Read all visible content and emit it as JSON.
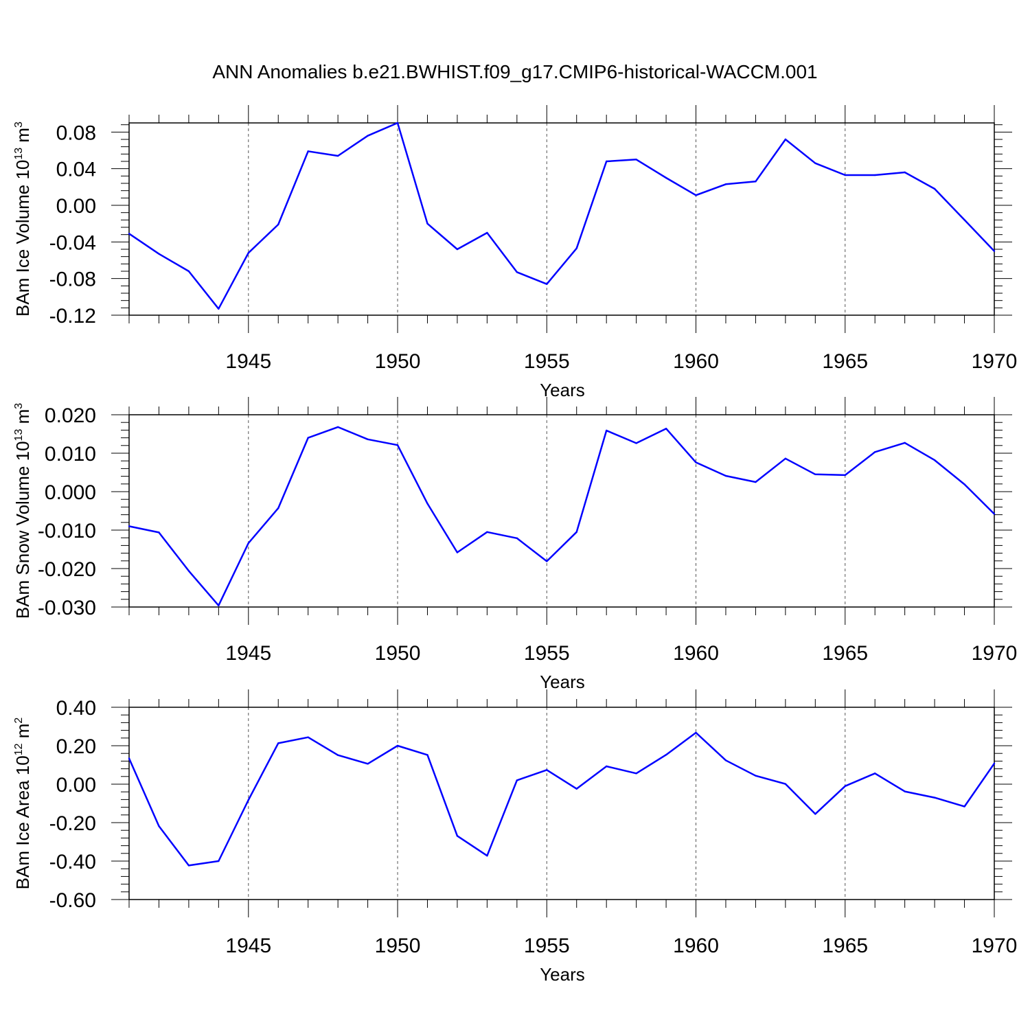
{
  "title": "ANN Anomalies b.e21.BWHIST.f09_g17.CMIP6-historical-WACCM.001",
  "line_color": "#0000ff",
  "chart_data": [
    {
      "type": "line",
      "ylabel_main": "BAm Ice Volume 10",
      "ylabel_exp": "13",
      "ylabel_unit": " m",
      "ylabel_unit_exp": "3",
      "xlabel": "Years",
      "xlim": [
        1941,
        1970
      ],
      "ylim": [
        -0.12,
        0.09
      ],
      "yticks": [
        -0.12,
        -0.08,
        -0.04,
        0.0,
        0.04,
        0.08
      ],
      "ytick_labels": [
        "-0.12",
        "-0.08",
        "-0.04",
        "0.00",
        "0.04",
        "0.08"
      ],
      "xticks": [
        1945,
        1950,
        1955,
        1960,
        1965,
        1970
      ],
      "xtick_labels": [
        "1945",
        "1950",
        "1955",
        "1960",
        "1965",
        "1970"
      ],
      "x": [
        1941,
        1942,
        1943,
        1944,
        1945,
        1946,
        1947,
        1948,
        1949,
        1950,
        1951,
        1952,
        1953,
        1954,
        1955,
        1956,
        1957,
        1958,
        1959,
        1960,
        1961,
        1962,
        1963,
        1964,
        1965,
        1966,
        1967,
        1968,
        1969,
        1970
      ],
      "values": [
        -0.031,
        -0.053,
        -0.072,
        -0.113,
        -0.052,
        -0.021,
        0.059,
        0.054,
        0.076,
        0.09,
        -0.02,
        -0.048,
        -0.03,
        -0.073,
        -0.086,
        -0.047,
        0.048,
        0.05,
        0.03,
        0.011,
        0.023,
        0.026,
        0.072,
        0.046,
        0.033,
        0.033,
        0.036,
        0.018,
        -0.016,
        -0.05
      ]
    },
    {
      "type": "line",
      "ylabel_main": "BAm Snow Volume 10",
      "ylabel_exp": "13",
      "ylabel_unit": " m",
      "ylabel_unit_exp": "3",
      "xlabel": "Years",
      "xlim": [
        1941,
        1970
      ],
      "ylim": [
        -0.03,
        0.02
      ],
      "yticks": [
        -0.03,
        -0.02,
        -0.01,
        0.0,
        0.01,
        0.02
      ],
      "ytick_labels": [
        "-0.030",
        "-0.020",
        "-0.010",
        "0.000",
        "0.010",
        "0.020"
      ],
      "xticks": [
        1945,
        1950,
        1955,
        1960,
        1965,
        1970
      ],
      "xtick_labels": [
        "1945",
        "1950",
        "1955",
        "1960",
        "1965",
        "1970"
      ],
      "x": [
        1941,
        1942,
        1943,
        1944,
        1945,
        1946,
        1947,
        1948,
        1949,
        1950,
        1951,
        1952,
        1953,
        1954,
        1955,
        1956,
        1957,
        1958,
        1959,
        1960,
        1961,
        1962,
        1963,
        1964,
        1965,
        1966,
        1967,
        1968,
        1969,
        1970
      ],
      "values": [
        -0.009,
        -0.0106,
        -0.0206,
        -0.0296,
        -0.0134,
        -0.0043,
        0.014,
        0.0168,
        0.0136,
        0.0121,
        -0.0031,
        -0.0158,
        -0.0105,
        -0.0121,
        -0.0181,
        -0.0105,
        0.0159,
        0.0126,
        0.0164,
        0.0076,
        0.0041,
        0.0025,
        0.0086,
        0.0045,
        0.0043,
        0.0103,
        0.0127,
        0.0082,
        0.0019,
        -0.0058
      ]
    },
    {
      "type": "line",
      "ylabel_main": "BAm Ice Area 10",
      "ylabel_exp": "12",
      "ylabel_unit": " m",
      "ylabel_unit_exp": "2",
      "xlabel": "Years",
      "xlim": [
        1941,
        1970
      ],
      "ylim": [
        -0.6,
        0.4
      ],
      "yticks": [
        -0.6,
        -0.4,
        -0.2,
        0.0,
        0.2,
        0.4
      ],
      "ytick_labels": [
        "-0.60",
        "-0.40",
        "-0.20",
        "0.00",
        "0.20",
        "0.40"
      ],
      "xticks": [
        1945,
        1950,
        1955,
        1960,
        1965,
        1970
      ],
      "xtick_labels": [
        "1945",
        "1950",
        "1955",
        "1960",
        "1965",
        "1970"
      ],
      "x": [
        1941,
        1942,
        1943,
        1944,
        1945,
        1946,
        1947,
        1948,
        1949,
        1950,
        1951,
        1952,
        1953,
        1954,
        1955,
        1956,
        1957,
        1958,
        1959,
        1960,
        1961,
        1962,
        1963,
        1964,
        1965,
        1966,
        1967,
        1968,
        1969,
        1970
      ],
      "values": [
        0.134,
        -0.218,
        -0.423,
        -0.4,
        -0.082,
        0.213,
        0.244,
        0.151,
        0.106,
        0.2,
        0.152,
        -0.269,
        -0.372,
        0.02,
        0.074,
        -0.024,
        0.093,
        0.056,
        0.153,
        0.268,
        0.124,
        0.044,
        0.001,
        -0.155,
        -0.01,
        0.056,
        -0.038,
        -0.07,
        -0.116,
        0.108
      ]
    }
  ]
}
